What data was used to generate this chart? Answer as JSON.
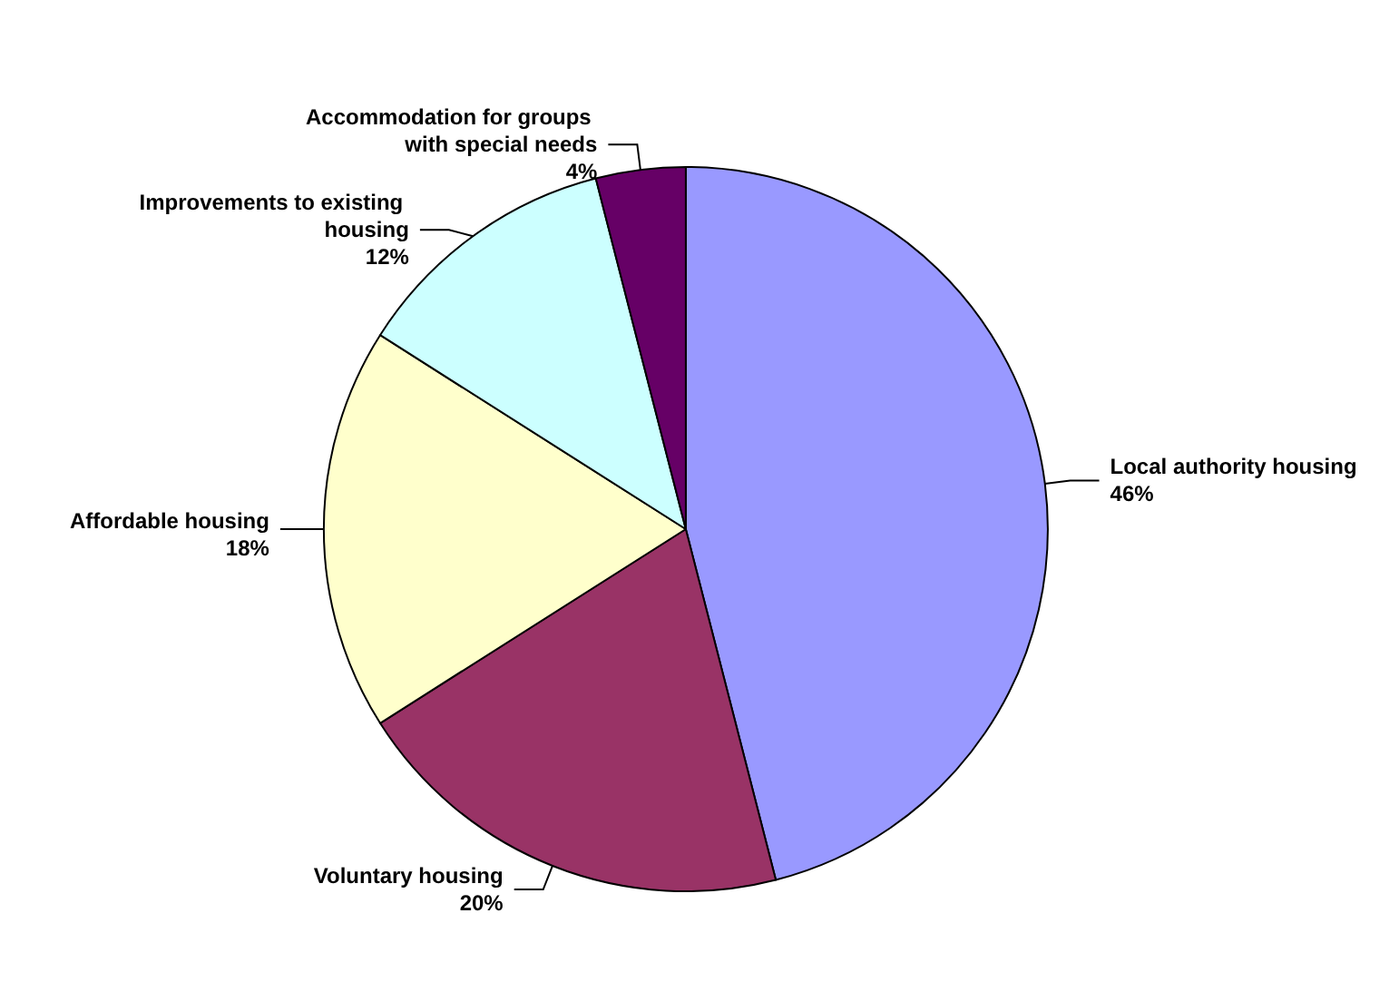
{
  "chart_data": {
    "type": "pie",
    "categories": [
      "Local authority housing",
      "Voluntary housing",
      "Affordable housing",
      "Improvements to existing housing",
      "Accommodation for groups with special needs"
    ],
    "values": [
      46,
      20,
      18,
      12,
      4
    ],
    "value_labels": [
      "46%",
      "20%",
      "18%",
      "12%",
      "4%"
    ],
    "colors": [
      "#9999ff",
      "#993366",
      "#ffffcc",
      "#ccffff",
      "#660066"
    ],
    "legend": false
  }
}
